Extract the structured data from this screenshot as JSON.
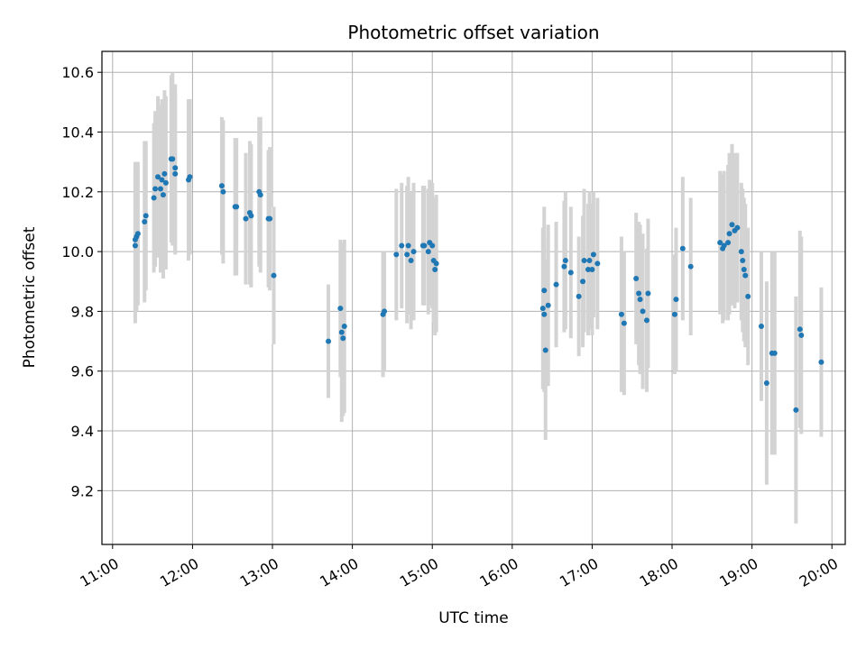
{
  "chart_data": {
    "type": "scatter",
    "title": "Photometric offset variation",
    "xlabel": "UTC time",
    "ylabel": "Photometric offset",
    "x_tick_labels": [
      "11:00",
      "12:00",
      "13:00",
      "14:00",
      "15:00",
      "16:00",
      "17:00",
      "18:00",
      "19:00",
      "20:00"
    ],
    "y_tick_labels": [
      "9.2",
      "9.4",
      "9.6",
      "9.8",
      "10.0",
      "10.2",
      "10.4",
      "10.6"
    ],
    "y_ticks": [
      9.2,
      9.4,
      9.6,
      9.8,
      10.0,
      10.2,
      10.4,
      10.6
    ],
    "xlim": [
      "10:52",
      "20:10"
    ],
    "ylim": [
      9.02,
      10.67
    ],
    "grid": true,
    "point_color": "#1f77b4",
    "errorbar_color": "#d3d3d3",
    "points": [
      {
        "x": "11:17",
        "y": 10.04,
        "err": 0.26
      },
      {
        "x": "11:17",
        "y": 10.02,
        "err": 0.26
      },
      {
        "x": "11:18",
        "y": 10.05,
        "err": 0.25
      },
      {
        "x": "11:19",
        "y": 10.06,
        "err": 0.24
      },
      {
        "x": "11:24",
        "y": 10.1,
        "err": 0.27
      },
      {
        "x": "11:25",
        "y": 10.12,
        "err": 0.25
      },
      {
        "x": "11:31",
        "y": 10.18,
        "err": 0.25
      },
      {
        "x": "11:32",
        "y": 10.21,
        "err": 0.26
      },
      {
        "x": "11:34",
        "y": 10.25,
        "err": 0.27
      },
      {
        "x": "11:36",
        "y": 10.21,
        "err": 0.28
      },
      {
        "x": "11:37",
        "y": 10.24,
        "err": 0.27
      },
      {
        "x": "11:38",
        "y": 10.19,
        "err": 0.28
      },
      {
        "x": "11:39",
        "y": 10.26,
        "err": 0.28
      },
      {
        "x": "11:40",
        "y": 10.23,
        "err": 0.29
      },
      {
        "x": "11:44",
        "y": 10.31,
        "err": 0.28
      },
      {
        "x": "11:45",
        "y": 10.31,
        "err": 0.29
      },
      {
        "x": "11:47",
        "y": 10.28,
        "err": 0.28
      },
      {
        "x": "11:47",
        "y": 10.26,
        "err": 0.27
      },
      {
        "x": "11:57",
        "y": 10.24,
        "err": 0.27
      },
      {
        "x": "11:58",
        "y": 10.25,
        "err": 0.26
      },
      {
        "x": "12:22",
        "y": 10.22,
        "err": 0.23
      },
      {
        "x": "12:23",
        "y": 10.2,
        "err": 0.24
      },
      {
        "x": "12:32",
        "y": 10.15,
        "err": 0.23
      },
      {
        "x": "12:33",
        "y": 10.15,
        "err": 0.23
      },
      {
        "x": "12:40",
        "y": 10.11,
        "err": 0.22
      },
      {
        "x": "12:43",
        "y": 10.13,
        "err": 0.24
      },
      {
        "x": "12:44",
        "y": 10.12,
        "err": 0.24
      },
      {
        "x": "12:50",
        "y": 10.2,
        "err": 0.25
      },
      {
        "x": "12:51",
        "y": 10.19,
        "err": 0.26
      },
      {
        "x": "12:57",
        "y": 10.11,
        "err": 0.23
      },
      {
        "x": "12:58",
        "y": 10.11,
        "err": 0.24
      },
      {
        "x": "13:01",
        "y": 9.92,
        "err": 0.23
      },
      {
        "x": "13:42",
        "y": 9.7,
        "err": 0.19
      },
      {
        "x": "13:51",
        "y": 9.81,
        "err": 0.23
      },
      {
        "x": "13:52",
        "y": 9.73,
        "err": 0.3
      },
      {
        "x": "13:53",
        "y": 9.71,
        "err": 0.26
      },
      {
        "x": "13:54",
        "y": 9.75,
        "err": 0.29
      },
      {
        "x": "14:23",
        "y": 9.79,
        "err": 0.21
      },
      {
        "x": "14:24",
        "y": 9.8,
        "err": 0.2
      },
      {
        "x": "14:33",
        "y": 9.99,
        "err": 0.22
      },
      {
        "x": "14:37",
        "y": 10.02,
        "err": 0.21
      },
      {
        "x": "14:41",
        "y": 9.99,
        "err": 0.23
      },
      {
        "x": "14:42",
        "y": 10.02,
        "err": 0.23
      },
      {
        "x": "14:44",
        "y": 9.97,
        "err": 0.23
      },
      {
        "x": "14:46",
        "y": 10.0,
        "err": 0.23
      },
      {
        "x": "14:53",
        "y": 10.02,
        "err": 0.2
      },
      {
        "x": "14:54",
        "y": 10.02,
        "err": 0.2
      },
      {
        "x": "14:57",
        "y": 10.0,
        "err": 0.21
      },
      {
        "x": "14:58",
        "y": 10.03,
        "err": 0.21
      },
      {
        "x": "15:00",
        "y": 10.02,
        "err": 0.21
      },
      {
        "x": "15:01",
        "y": 9.97,
        "err": 0.21
      },
      {
        "x": "15:02",
        "y": 9.94,
        "err": 0.22
      },
      {
        "x": "15:03",
        "y": 9.96,
        "err": 0.23
      },
      {
        "x": "16:23",
        "y": 9.81,
        "err": 0.27
      },
      {
        "x": "16:24",
        "y": 9.79,
        "err": 0.26
      },
      {
        "x": "16:24",
        "y": 9.87,
        "err": 0.28
      },
      {
        "x": "16:25",
        "y": 9.67,
        "err": 0.3
      },
      {
        "x": "16:27",
        "y": 9.82,
        "err": 0.27
      },
      {
        "x": "16:33",
        "y": 9.89,
        "err": 0.21
      },
      {
        "x": "16:39",
        "y": 9.95,
        "err": 0.22
      },
      {
        "x": "16:40",
        "y": 9.97,
        "err": 0.23
      },
      {
        "x": "16:44",
        "y": 9.93,
        "err": 0.22
      },
      {
        "x": "16:50",
        "y": 9.85,
        "err": 0.2
      },
      {
        "x": "16:53",
        "y": 9.9,
        "err": 0.22
      },
      {
        "x": "16:54",
        "y": 9.97,
        "err": 0.24
      },
      {
        "x": "16:57",
        "y": 9.94,
        "err": 0.22
      },
      {
        "x": "16:58",
        "y": 9.97,
        "err": 0.23
      },
      {
        "x": "17:00",
        "y": 9.94,
        "err": 0.22
      },
      {
        "x": "17:01",
        "y": 9.99,
        "err": 0.21
      },
      {
        "x": "17:04",
        "y": 9.96,
        "err": 0.22
      },
      {
        "x": "17:22",
        "y": 9.79,
        "err": 0.26
      },
      {
        "x": "17:24",
        "y": 9.76,
        "err": 0.24
      },
      {
        "x": "17:33",
        "y": 9.91,
        "err": 0.22
      },
      {
        "x": "17:35",
        "y": 9.86,
        "err": 0.24
      },
      {
        "x": "17:36",
        "y": 9.84,
        "err": 0.25
      },
      {
        "x": "17:38",
        "y": 9.8,
        "err": 0.26
      },
      {
        "x": "17:41",
        "y": 9.77,
        "err": 0.24
      },
      {
        "x": "17:42",
        "y": 9.86,
        "err": 0.25
      },
      {
        "x": "18:02",
        "y": 9.79,
        "err": 0.2
      },
      {
        "x": "18:03",
        "y": 9.84,
        "err": 0.24
      },
      {
        "x": "18:08",
        "y": 10.01,
        "err": 0.24
      },
      {
        "x": "18:14",
        "y": 9.95,
        "err": 0.23
      },
      {
        "x": "18:36",
        "y": 10.03,
        "err": 0.24
      },
      {
        "x": "18:38",
        "y": 10.01,
        "err": 0.25
      },
      {
        "x": "18:39",
        "y": 10.02,
        "err": 0.25
      },
      {
        "x": "18:42",
        "y": 10.03,
        "err": 0.26
      },
      {
        "x": "18:43",
        "y": 10.06,
        "err": 0.27
      },
      {
        "x": "18:45",
        "y": 10.09,
        "err": 0.27
      },
      {
        "x": "18:47",
        "y": 10.07,
        "err": 0.26
      },
      {
        "x": "18:49",
        "y": 10.08,
        "err": 0.25
      },
      {
        "x": "18:52",
        "y": 10.0,
        "err": 0.23
      },
      {
        "x": "18:53",
        "y": 9.97,
        "err": 0.24
      },
      {
        "x": "18:54",
        "y": 9.94,
        "err": 0.24
      },
      {
        "x": "18:55",
        "y": 9.92,
        "err": 0.24
      },
      {
        "x": "18:57",
        "y": 9.85,
        "err": 0.23
      },
      {
        "x": "19:07",
        "y": 9.75,
        "err": 0.25
      },
      {
        "x": "19:11",
        "y": 9.56,
        "err": 0.34
      },
      {
        "x": "19:15",
        "y": 9.66,
        "err": 0.34
      },
      {
        "x": "19:17",
        "y": 9.66,
        "err": 0.34
      },
      {
        "x": "19:33",
        "y": 9.47,
        "err": 0.38
      },
      {
        "x": "19:36",
        "y": 9.74,
        "err": 0.33
      },
      {
        "x": "19:37",
        "y": 9.72,
        "err": 0.33
      },
      {
        "x": "19:52",
        "y": 9.63,
        "err": 0.25
      }
    ]
  }
}
